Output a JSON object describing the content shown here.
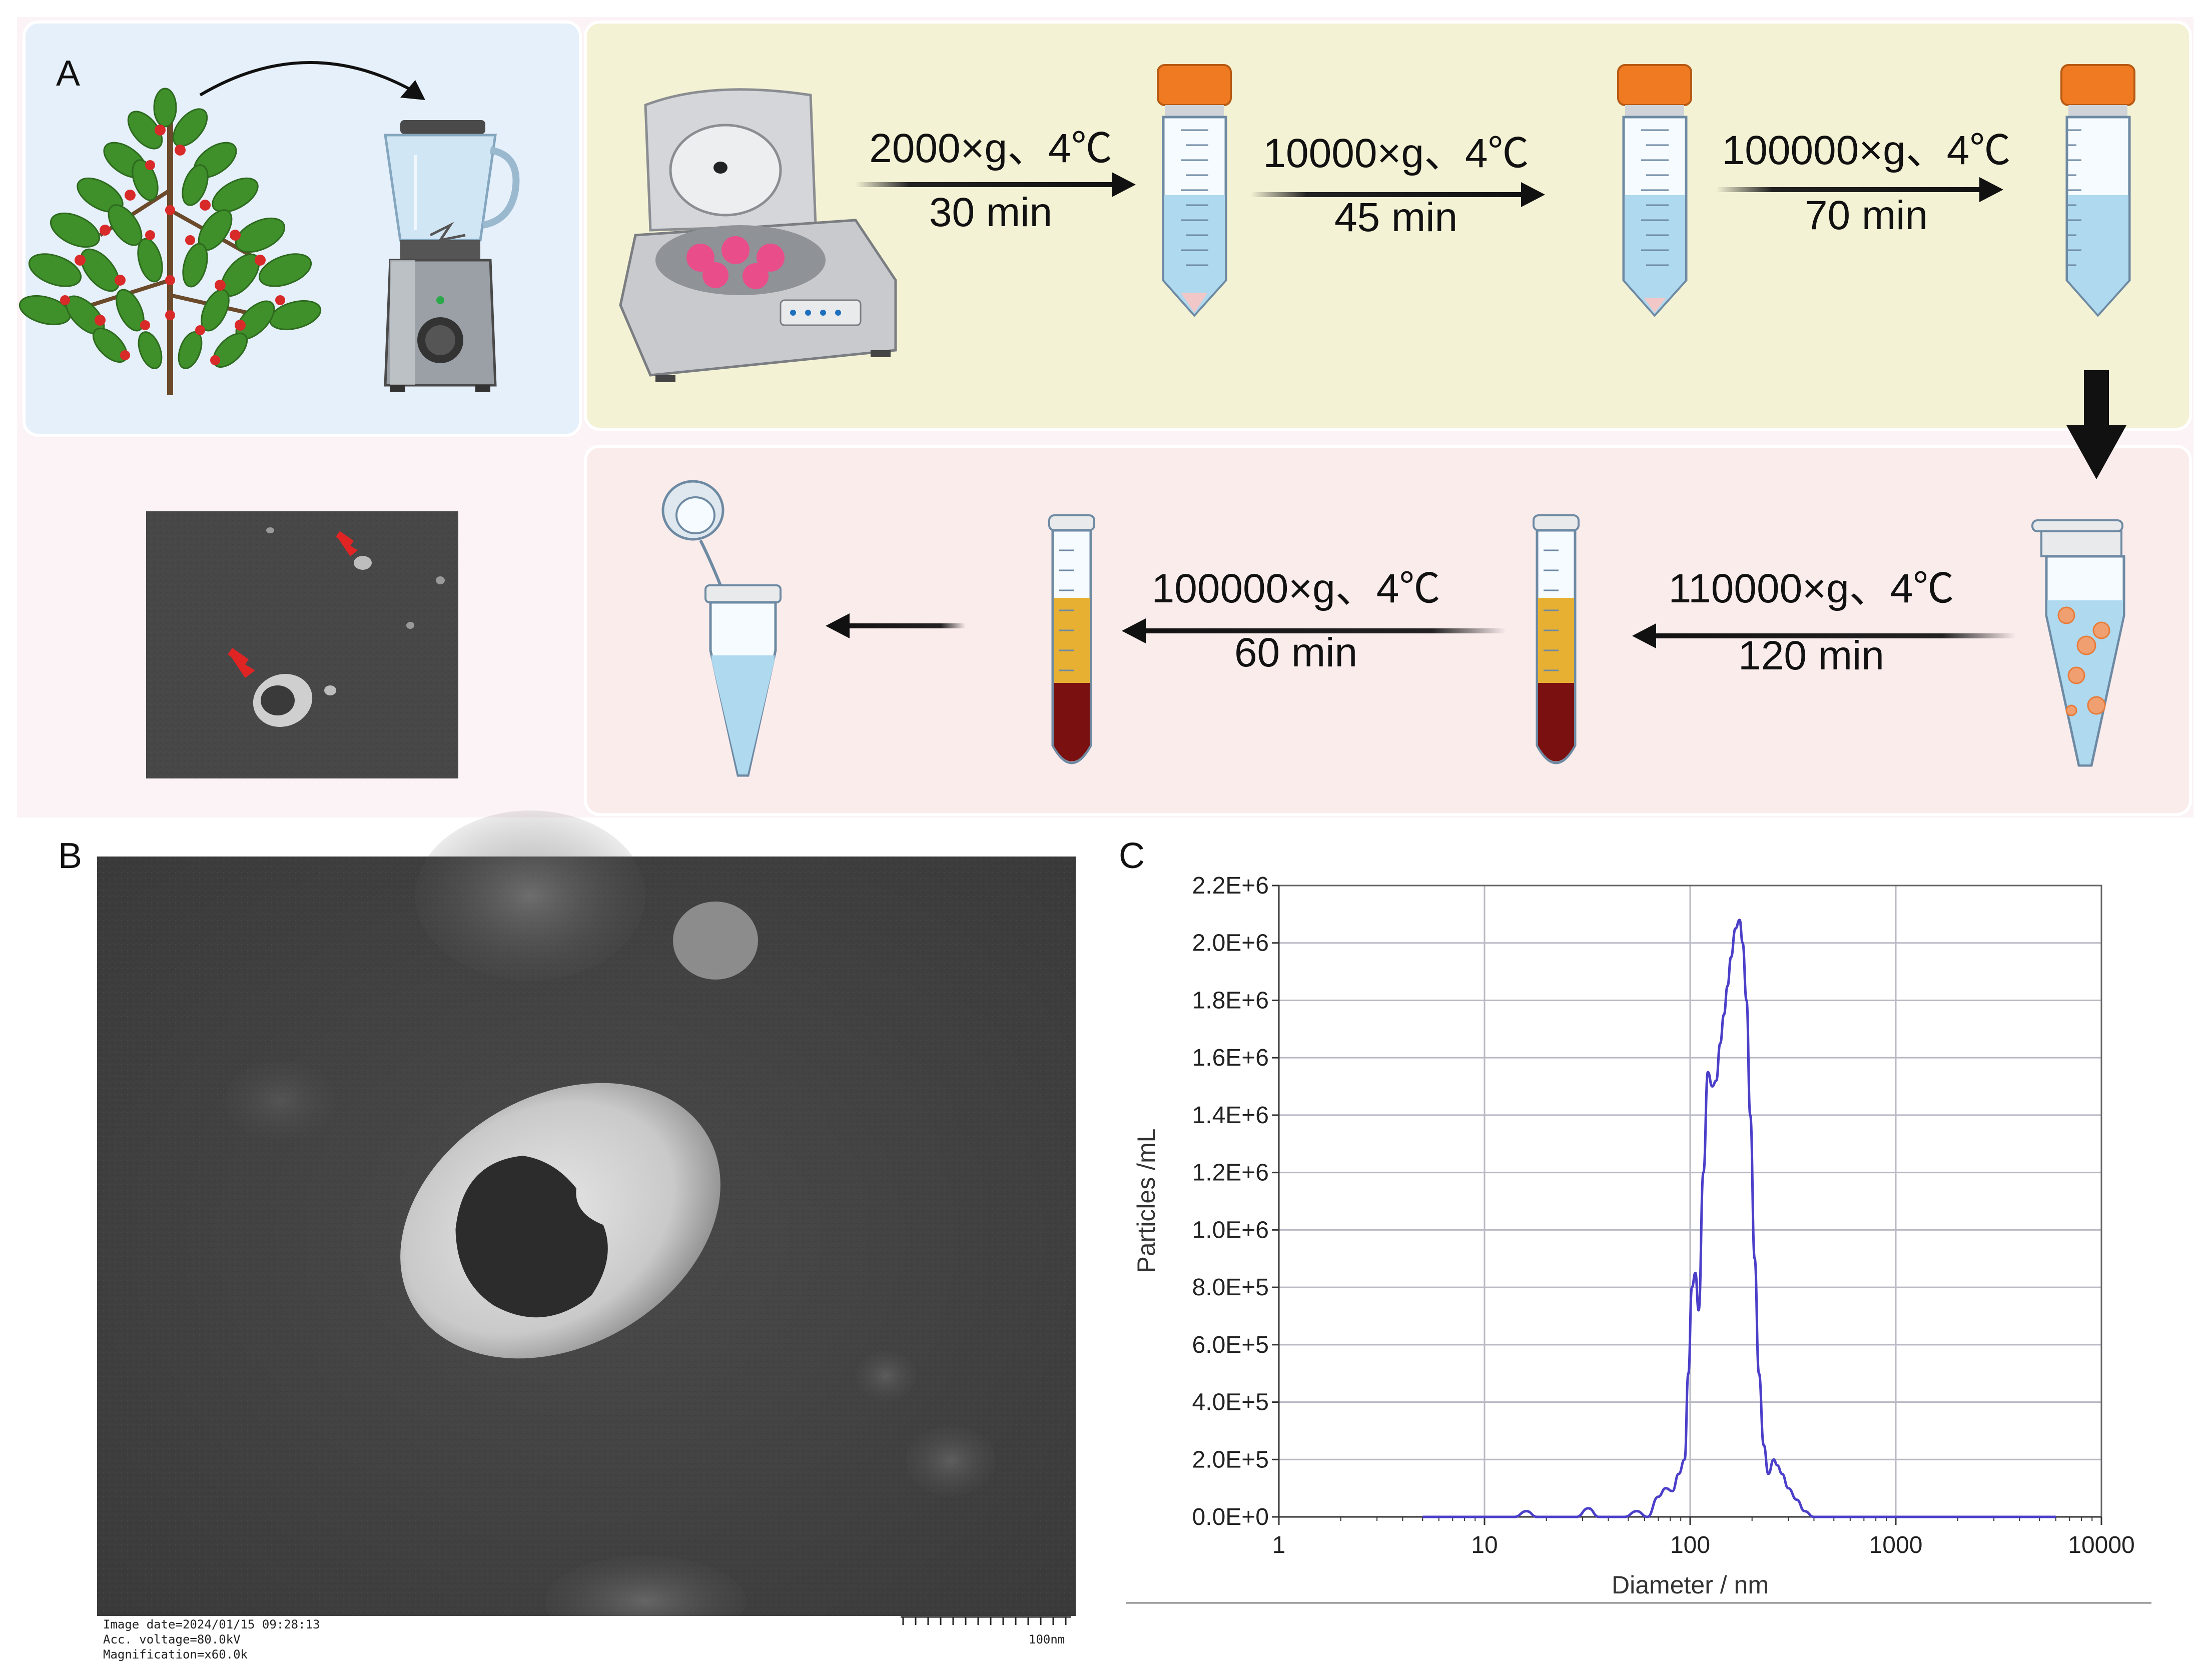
{
  "panels": {
    "a": "A",
    "b": "B",
    "c": "C"
  },
  "workflow": {
    "top_steps": [
      {
        "line1": "2000×g、4℃",
        "line2": "30 min"
      },
      {
        "line1": "10000×g、4℃",
        "line2": "45 min"
      },
      {
        "line1": "100000×g、4℃",
        "line2": "70 min"
      }
    ],
    "bottom_steps": [
      {
        "line1": "110000×g、4℃",
        "line2": "120 min"
      },
      {
        "line1": "100000×g、4℃",
        "line2": "60 min"
      }
    ],
    "colors": {
      "blue_panel": "#e6f0fb",
      "yellow_panel": "#f4f2d4",
      "pink_panel": "#fbecec",
      "tube_cap": "#f07a22",
      "liquid_blue": "#aed9ef",
      "gradient_yellow": "#e8b032",
      "gradient_red": "#7a1010",
      "berries": "#d92a2a",
      "leaves": "#3f8f2a"
    }
  },
  "tem_image": {
    "meta_lines": [
      "Image date=2024/01/15 09:28:13",
      "Acc. voltage=80.0kV",
      "Magnification=x60.0k"
    ],
    "scale_label": "100nm"
  },
  "chart_data": {
    "type": "line",
    "title": "",
    "xlabel": "Diameter / nm",
    "ylabel": "Particles /mL",
    "x_scale": "log",
    "xlim": [
      1,
      10000
    ],
    "ylim": [
      0,
      2200000
    ],
    "x_ticks": [
      "1",
      "10",
      "100",
      "1000",
      "10000"
    ],
    "y_ticks": [
      "0.0E+0",
      "2.0E+5",
      "4.0E+5",
      "6.0E+5",
      "8.0E+5",
      "1.0E+6",
      "1.2E+6",
      "1.4E+6",
      "1.6E+6",
      "1.8E+6",
      "2.0E+6",
      "2.2E+6"
    ],
    "grid": true,
    "series": [
      {
        "color": "#4b3fc9",
        "x": [
          5,
          14,
          16,
          18,
          28,
          32,
          36,
          48,
          55,
          62,
          70,
          76,
          82,
          88,
          94,
          98,
          102,
          106,
          110,
          116,
          122,
          128,
          134,
          140,
          146,
          152,
          158,
          166,
          174,
          180,
          188,
          196,
          206,
          216,
          228,
          240,
          255,
          265,
          280,
          300,
          330,
          360,
          400,
          440,
          480,
          600,
          1000,
          3000,
          6000
        ],
        "y": [
          0,
          0,
          20000,
          0,
          0,
          30000,
          0,
          0,
          20000,
          0,
          70000,
          100000,
          90000,
          150000,
          200000,
          500000,
          800000,
          850000,
          720000,
          1200000,
          1550000,
          1500000,
          1520000,
          1650000,
          1750000,
          1850000,
          1950000,
          2050000,
          2080000,
          2000000,
          1800000,
          1400000,
          900000,
          500000,
          250000,
          150000,
          200000,
          180000,
          150000,
          100000,
          60000,
          20000,
          0,
          0,
          0,
          0,
          0,
          0,
          0
        ]
      }
    ]
  }
}
